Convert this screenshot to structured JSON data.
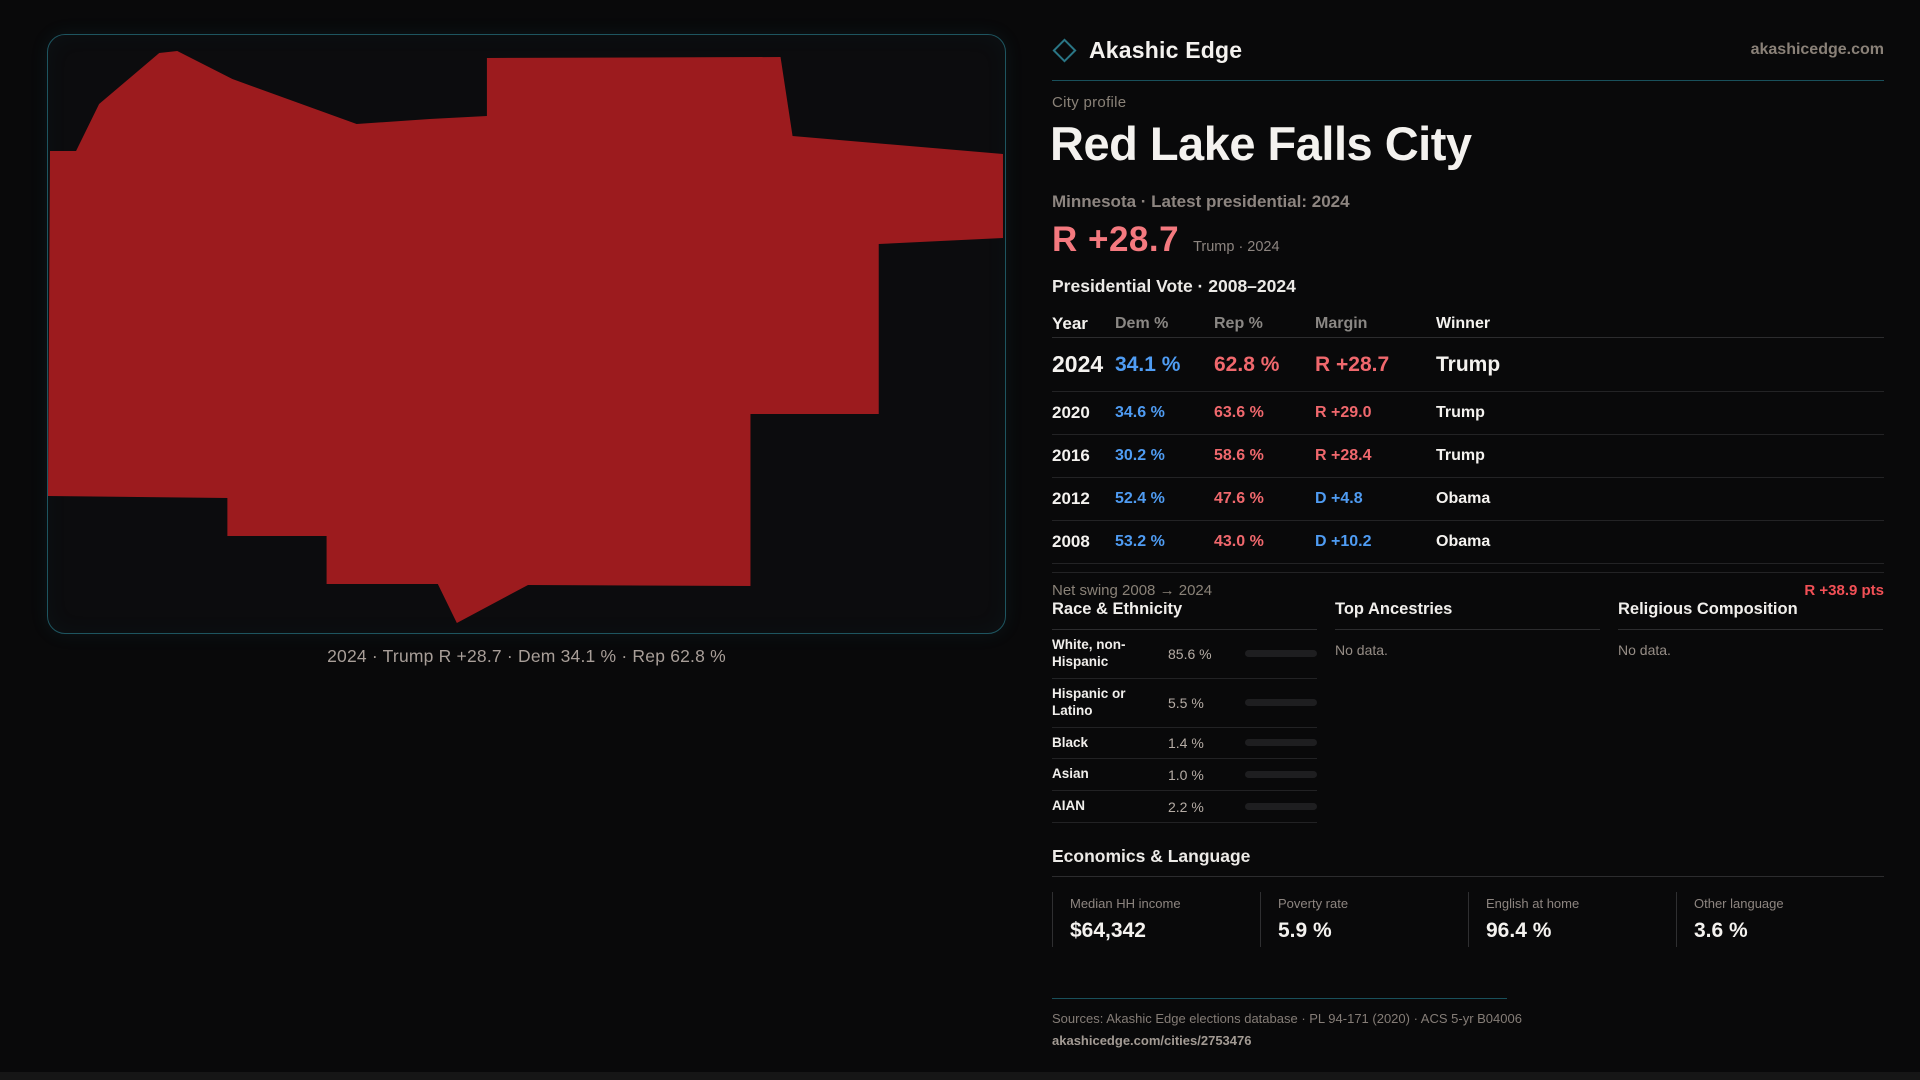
{
  "brand": {
    "name": "Akashic Edge",
    "domain": "akashicedge.com"
  },
  "map": {
    "fill_color": "#9c1b1e",
    "caption": "2024 · Trump R +28.7 · Dem 34.1 % · Rep 62.8 %"
  },
  "profile": {
    "kicker": "City profile",
    "title": "Red Lake Falls City",
    "subtitle": "Minnesota · Latest presidential: 2024",
    "headline_margin": "R +28.7",
    "headline_note": "Trump · 2024",
    "margin_color": "#f4797f"
  },
  "vote_table": {
    "title": "Presidential Vote · 2008–2024",
    "columns": [
      "Year",
      "Dem %",
      "Rep %",
      "Margin",
      "Winner"
    ],
    "rows": [
      {
        "year": "2024",
        "dem": "34.1 %",
        "rep": "62.8 %",
        "margin": "R +28.7",
        "winner": "Trump"
      },
      {
        "year": "2020",
        "dem": "34.6 %",
        "rep": "63.6 %",
        "margin": "R +29.0",
        "winner": "Trump"
      },
      {
        "year": "2016",
        "dem": "30.2 %",
        "rep": "58.6 %",
        "margin": "R +28.4",
        "winner": "Trump"
      },
      {
        "year": "2012",
        "dem": "52.4 %",
        "rep": "47.6 %",
        "margin": "D +4.8",
        "winner": "Obama"
      },
      {
        "year": "2008",
        "dem": "53.2 %",
        "rep": "43.0 %",
        "margin": "D +10.2",
        "winner": "Obama"
      }
    ],
    "net_swing_label": "Net swing 2008 → 2024",
    "net_swing_value": "R +38.9 pts",
    "dem_color": "#4f9cf3",
    "rep_color": "#f0686d"
  },
  "race": {
    "title": "Race & Ethnicity",
    "rows": [
      {
        "label": "White, non-Hispanic",
        "value": "85.6 %",
        "pct": 85.6,
        "color": "#93a9c6"
      },
      {
        "label": "Hispanic or Latino",
        "value": "5.5 %",
        "pct": 5.5,
        "color": "#e2a43d"
      },
      {
        "label": "Black",
        "value": "1.4 %",
        "pct": 1.4,
        "color": "#8d85ef"
      },
      {
        "label": "Asian",
        "value": "1.0 %",
        "pct": 1.0,
        "color": "#3fc9a2"
      },
      {
        "label": "AIAN",
        "value": "2.2 %",
        "pct": 2.2,
        "color": "#e2892f"
      }
    ]
  },
  "ancestries": {
    "title": "Top Ancestries",
    "empty": "No data."
  },
  "religion": {
    "title": "Religious Composition",
    "empty": "No data."
  },
  "economics": {
    "title": "Economics & Language",
    "stats": [
      {
        "label": "Median HH income",
        "value": "$64,342"
      },
      {
        "label": "Poverty rate",
        "value": "5.9 %"
      },
      {
        "label": "English at home",
        "value": "96.4 %"
      },
      {
        "label": "Other language",
        "value": "3.6 %"
      }
    ]
  },
  "footer": {
    "sources": "Sources: Akashic Edge elections database · PL 94-171 (2020) · ACS 5-yr B04006",
    "permalink": "akashicedge.com/cities/2753476"
  }
}
